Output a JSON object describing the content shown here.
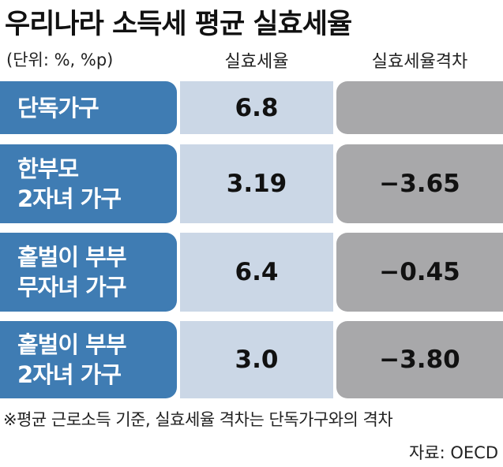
{
  "header": {
    "title": "우리나라 소득세 평균 실효세율",
    "unit": "(단위: %, %p)"
  },
  "table": {
    "columns": [
      "실효세율",
      "실효세율격차"
    ],
    "rows": [
      {
        "label": [
          "단독가구"
        ],
        "rate": "6.8",
        "gap": null
      },
      {
        "label": [
          "한부모",
          "2자녀 가구"
        ],
        "rate": "3.19",
        "gap": "−3.65"
      },
      {
        "label": [
          "홑벌이 부부",
          "무자녀 가구"
        ],
        "rate": "6.4",
        "gap": "−0.45"
      },
      {
        "label": [
          "홑벌이 부부",
          "2자녀 가구"
        ],
        "rate": "3.0",
        "gap": "−3.80"
      }
    ]
  },
  "footnote": "※평균 근로소득 기준, 실효세율 격차는 단독가구와의 격차",
  "source": "자료: OECD"
}
